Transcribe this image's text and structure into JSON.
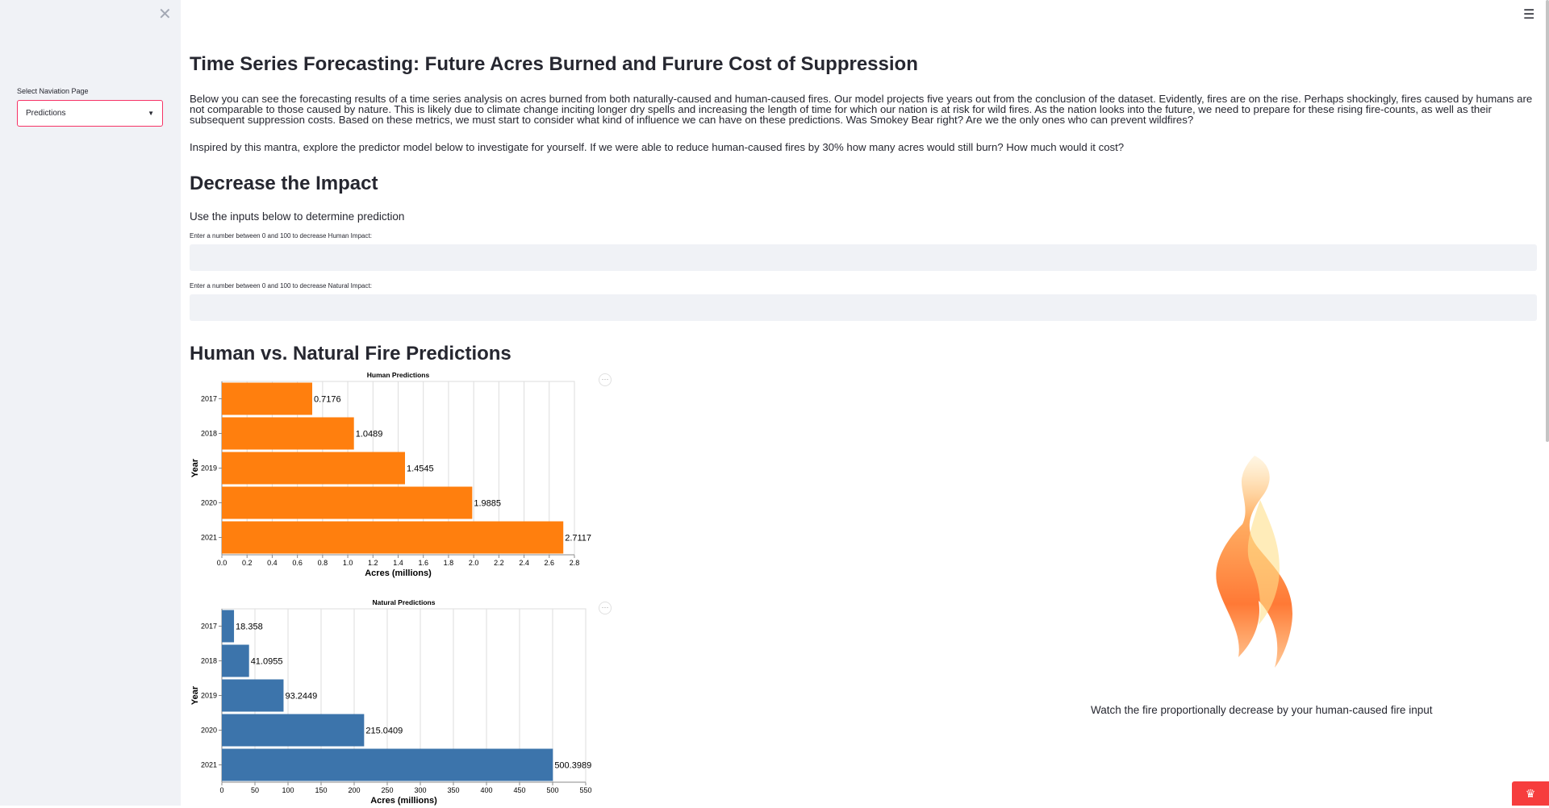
{
  "sidebar": {
    "close_icon": "close-icon",
    "select_label": "Select Naviation Page",
    "select_value": "Predictions"
  },
  "header": {
    "menu_icon": "hamburger-menu-icon"
  },
  "main": {
    "title": "Time Series Forecasting: Future Acres Burned and Furure Cost of Suppression",
    "intro": "Below you can see the forecasting results of a time series analysis on acres burned from both naturally-caused and human-caused fires. Our model projects five years out from the conclusion of the dataset. Evidently, fires are on the rise. Perhaps shockingly, fires caused by humans are not comparable to those caused by nature. This is likely due to climate change inciting longer dry spells and increasing the length of time for which our nation is at risk for wild fires. As the nation looks into the future, we need to prepare for these rising fire-counts, as well as their subsequent suppression costs. Based on these metrics, we must start to consider what kind of influence we can have on these predictions. Was Smokey Bear right? Are we the only ones who can prevent wildfires?",
    "intro2": "Inspired by this mantra, explore the predictor model below to investigate for yourself. If we were able to reduce human-caused fires by 30% how many acres would still burn? How much would it cost?",
    "impact_heading": "Decrease the Impact",
    "use_inputs": "Use the inputs below to determine prediction",
    "human_input_label": "Enter a number between 0 and 100 to decrease Human Impact:",
    "human_input_value": "",
    "natural_input_label": "Enter a number between 0 and 100 to decrease Natural Impact:",
    "natural_input_value": "",
    "predictions_heading": "Human vs. Natural Fire Predictions",
    "fire_caption": "Watch the fire proportionally decrease by your human-caused fire input",
    "more_icon": "more-options-icon"
  },
  "chart_data": [
    {
      "type": "bar",
      "orientation": "horizontal",
      "title": "Human Predictions",
      "xlabel": "Acres (millions)",
      "ylabel": "Year",
      "categories": [
        "2017",
        "2018",
        "2019",
        "2020",
        "2021"
      ],
      "values": [
        0.7176,
        1.0489,
        1.4545,
        1.9885,
        2.7117
      ],
      "data_labels": [
        "0.7176",
        "1.0489",
        "1.4545",
        "1.9885",
        "2.7117"
      ],
      "xlim": [
        0,
        2.8
      ],
      "xticks": [
        "0.0",
        "0.2",
        "0.4",
        "0.6",
        "0.8",
        "1.0",
        "1.2",
        "1.4",
        "1.6",
        "1.8",
        "2.0",
        "2.2",
        "2.4",
        "2.6",
        "2.8"
      ],
      "color": "#ff7f0e",
      "grid": true
    },
    {
      "type": "bar",
      "orientation": "horizontal",
      "title": "Natural Predictions",
      "xlabel": "Acres (millions)",
      "ylabel": "Year",
      "categories": [
        "2017",
        "2018",
        "2019",
        "2020",
        "2021"
      ],
      "values": [
        18.358,
        41.0955,
        93.2449,
        215.0409,
        500.3989
      ],
      "data_labels": [
        "18.358",
        "41.0955",
        "93.2449",
        "215.0409",
        "500.3989"
      ],
      "xlim": [
        0,
        550
      ],
      "xticks": [
        "0",
        "50",
        "100",
        "150",
        "200",
        "250",
        "300",
        "350",
        "400",
        "450",
        "500",
        "550"
      ],
      "color": "#3c74ab",
      "grid": true
    }
  ]
}
